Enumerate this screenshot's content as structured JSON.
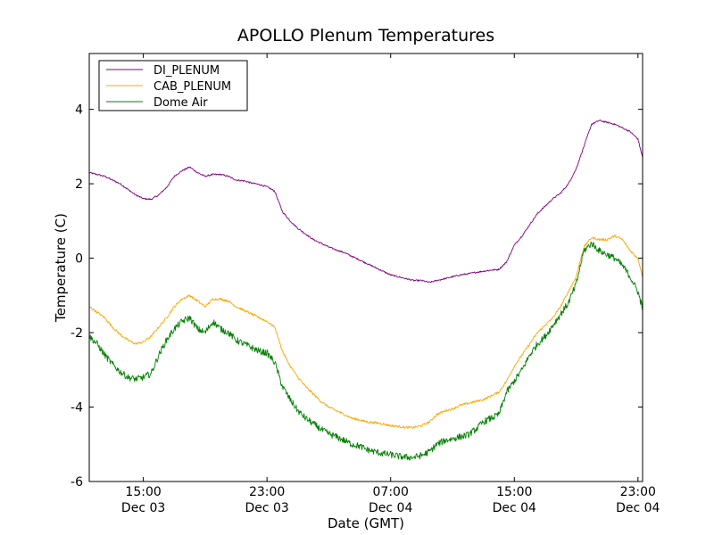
{
  "chart_data": {
    "type": "line",
    "title": "APOLLO Plenum Temperatures",
    "xlabel": "Date (GMT)",
    "ylabel": "Temperature (C)",
    "x_unit": "hours since Dec 03 00:00 GMT",
    "xlim": [
      11.5,
      47.3
    ],
    "ylim": [
      -6,
      5.5
    ],
    "y_ticks": [
      -6,
      -4,
      -2,
      0,
      2,
      4
    ],
    "y_tick_labels": [
      "-6",
      "-4",
      "-2",
      "0",
      "2",
      "4"
    ],
    "x_ticks": [
      {
        "x": 15,
        "time": "15:00",
        "date": "Dec 03"
      },
      {
        "x": 23,
        "time": "23:00",
        "date": "Dec 03"
      },
      {
        "x": 31,
        "time": "07:00",
        "date": "Dec 04"
      },
      {
        "x": 39,
        "time": "15:00",
        "date": "Dec 04"
      },
      {
        "x": 47,
        "time": "23:00",
        "date": "Dec 04"
      }
    ],
    "legend_position": "top-left",
    "series": [
      {
        "name": "DI_PLENUM",
        "color": "#800080",
        "noise": 0.02,
        "x": [
          11.5,
          12.0,
          12.5,
          13.0,
          13.5,
          14.0,
          14.5,
          15.0,
          15.5,
          16.0,
          16.5,
          17.0,
          17.5,
          18.0,
          18.5,
          19.0,
          19.5,
          20.0,
          20.5,
          21.0,
          21.5,
          22.0,
          22.5,
          23.0,
          23.5,
          24.0,
          24.5,
          25.0,
          25.5,
          26.0,
          26.5,
          27.0,
          27.5,
          28.0,
          28.5,
          29.0,
          29.5,
          30.0,
          30.5,
          31.0,
          31.5,
          32.0,
          32.5,
          33.0,
          33.5,
          34.0,
          34.5,
          35.0,
          35.5,
          36.0,
          36.5,
          37.0,
          37.5,
          38.0,
          38.5,
          39.0,
          39.5,
          40.0,
          40.5,
          41.0,
          41.5,
          42.0,
          42.5,
          43.0,
          43.5,
          44.0,
          44.5,
          45.0,
          45.5,
          46.0,
          46.5,
          47.0,
          47.3
        ],
        "values": [
          2.3,
          2.25,
          2.2,
          2.1,
          2.0,
          1.85,
          1.7,
          1.6,
          1.58,
          1.7,
          1.9,
          2.2,
          2.35,
          2.45,
          2.3,
          2.2,
          2.25,
          2.25,
          2.2,
          2.1,
          2.08,
          2.02,
          1.98,
          1.92,
          1.8,
          1.25,
          1.0,
          0.8,
          0.65,
          0.5,
          0.4,
          0.3,
          0.22,
          0.15,
          0.05,
          -0.05,
          -0.15,
          -0.25,
          -0.35,
          -0.45,
          -0.5,
          -0.55,
          -0.6,
          -0.6,
          -0.65,
          -0.6,
          -0.55,
          -0.5,
          -0.45,
          -0.42,
          -0.38,
          -0.35,
          -0.32,
          -0.3,
          -0.1,
          0.35,
          0.6,
          0.9,
          1.2,
          1.4,
          1.6,
          1.75,
          2.0,
          2.4,
          3.0,
          3.6,
          3.7,
          3.65,
          3.6,
          3.5,
          3.4,
          3.2,
          2.7
        ]
      },
      {
        "name": "CAB_PLENUM",
        "color": "#ffa500",
        "noise": 0.03,
        "x": [
          11.5,
          12.0,
          12.5,
          13.0,
          13.5,
          14.0,
          14.5,
          15.0,
          15.5,
          16.0,
          16.5,
          17.0,
          17.5,
          18.0,
          18.5,
          19.0,
          19.5,
          20.0,
          20.5,
          21.0,
          21.5,
          22.0,
          22.5,
          23.0,
          23.5,
          24.0,
          24.5,
          25.0,
          25.5,
          26.0,
          26.5,
          27.0,
          27.5,
          28.0,
          28.5,
          29.0,
          29.5,
          30.0,
          30.5,
          31.0,
          31.5,
          32.0,
          32.5,
          33.0,
          33.5,
          34.0,
          34.5,
          35.0,
          35.5,
          36.0,
          36.5,
          37.0,
          37.5,
          38.0,
          38.5,
          39.0,
          39.5,
          40.0,
          40.5,
          41.0,
          41.5,
          42.0,
          42.5,
          43.0,
          43.5,
          44.0,
          44.5,
          45.0,
          45.5,
          46.0,
          46.5,
          47.0,
          47.3
        ],
        "values": [
          -1.3,
          -1.45,
          -1.6,
          -1.85,
          -2.05,
          -2.2,
          -2.3,
          -2.25,
          -2.1,
          -1.85,
          -1.6,
          -1.3,
          -1.1,
          -1.0,
          -1.15,
          -1.3,
          -1.1,
          -1.1,
          -1.15,
          -1.3,
          -1.4,
          -1.5,
          -1.6,
          -1.7,
          -1.85,
          -2.5,
          -2.9,
          -3.2,
          -3.45,
          -3.65,
          -3.85,
          -4.0,
          -4.1,
          -4.2,
          -4.3,
          -4.35,
          -4.4,
          -4.42,
          -4.45,
          -4.5,
          -4.52,
          -4.55,
          -4.55,
          -4.5,
          -4.4,
          -4.2,
          -4.1,
          -4.05,
          -3.95,
          -3.9,
          -3.85,
          -3.8,
          -3.7,
          -3.6,
          -3.3,
          -2.9,
          -2.6,
          -2.3,
          -2.0,
          -1.8,
          -1.6,
          -1.3,
          -0.9,
          -0.5,
          0.3,
          0.55,
          0.5,
          0.5,
          0.6,
          0.5,
          0.2,
          0.0,
          -0.5
        ]
      },
      {
        "name": "Dome Air",
        "color": "#008000",
        "noise": 0.09,
        "x": [
          11.5,
          12.0,
          12.5,
          13.0,
          13.5,
          14.0,
          14.5,
          15.0,
          15.5,
          16.0,
          16.5,
          17.0,
          17.5,
          18.0,
          18.5,
          19.0,
          19.5,
          20.0,
          20.5,
          21.0,
          21.5,
          22.0,
          22.5,
          23.0,
          23.5,
          24.0,
          24.5,
          25.0,
          25.5,
          26.0,
          26.5,
          27.0,
          27.5,
          28.0,
          28.5,
          29.0,
          29.5,
          30.0,
          30.5,
          31.0,
          31.5,
          32.0,
          32.5,
          33.0,
          33.5,
          34.0,
          34.5,
          35.0,
          35.5,
          36.0,
          36.5,
          37.0,
          37.5,
          38.0,
          38.5,
          39.0,
          39.5,
          40.0,
          40.5,
          41.0,
          41.5,
          42.0,
          42.5,
          43.0,
          43.5,
          44.0,
          44.5,
          45.0,
          45.5,
          46.0,
          46.5,
          47.0,
          47.3
        ],
        "values": [
          -2.1,
          -2.3,
          -2.6,
          -2.85,
          -3.05,
          -3.2,
          -3.25,
          -3.2,
          -3.1,
          -2.6,
          -2.2,
          -1.9,
          -1.7,
          -1.6,
          -1.9,
          -2.0,
          -1.7,
          -1.9,
          -2.0,
          -2.2,
          -2.3,
          -2.4,
          -2.5,
          -2.55,
          -2.8,
          -3.45,
          -3.8,
          -4.1,
          -4.3,
          -4.45,
          -4.6,
          -4.72,
          -4.8,
          -4.9,
          -5.0,
          -5.05,
          -5.15,
          -5.2,
          -5.25,
          -5.28,
          -5.32,
          -5.35,
          -5.35,
          -5.3,
          -5.2,
          -5.0,
          -4.9,
          -4.85,
          -4.8,
          -4.75,
          -4.6,
          -4.4,
          -4.3,
          -4.2,
          -3.6,
          -3.3,
          -3.0,
          -2.6,
          -2.3,
          -2.1,
          -1.8,
          -1.5,
          -1.2,
          -0.7,
          0.2,
          0.4,
          0.2,
          0.1,
          0.0,
          -0.2,
          -0.5,
          -0.9,
          -1.35
        ]
      }
    ]
  }
}
